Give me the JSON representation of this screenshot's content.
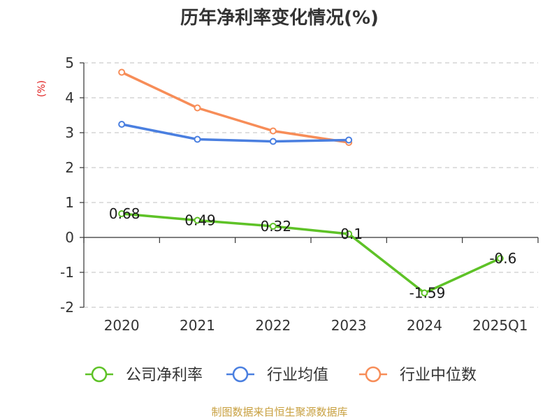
{
  "chart_data": {
    "type": "line",
    "title": "历年净利率变化情况(%)",
    "unit_label": "(%)",
    "categories": [
      "2020",
      "2021",
      "2022",
      "2023",
      "2024",
      "2025Q1"
    ],
    "ylim": [
      -2,
      5
    ],
    "yticks": [
      "5",
      "4",
      "3",
      "2",
      "1",
      "0",
      "-1",
      "-2"
    ],
    "ytick_values": [
      5,
      4,
      3,
      2,
      1,
      0,
      -1,
      -2
    ],
    "grid": true,
    "legend_position": "bottom",
    "series": [
      {
        "name": "公司净利率",
        "color": "#5ec227",
        "values": [
          0.68,
          0.49,
          0.32,
          0.1,
          -1.59,
          -0.6
        ],
        "labels": [
          "0.68",
          "0.49",
          "0.32",
          "0.1",
          "-1.59",
          "-0.6"
        ],
        "show_labels": true
      },
      {
        "name": "行业均值",
        "color": "#4a7fe0",
        "values": [
          3.24,
          2.81,
          2.75,
          2.79,
          null,
          null
        ],
        "show_labels": false
      },
      {
        "name": "行业中位数",
        "color": "#f78d58",
        "values": [
          4.73,
          3.71,
          3.05,
          2.72,
          null,
          null
        ],
        "show_labels": false
      }
    ]
  },
  "footer": {
    "source": "制图数据来自恒生聚源数据库"
  }
}
